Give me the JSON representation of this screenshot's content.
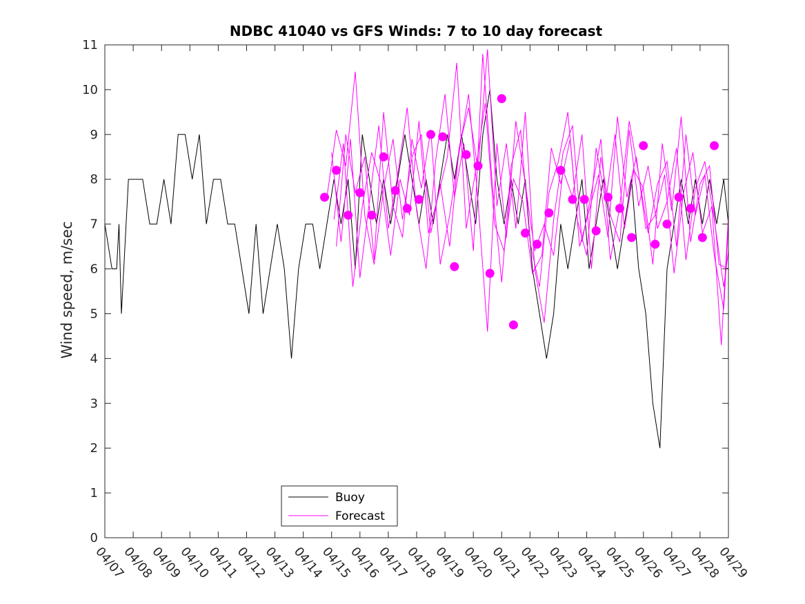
{
  "chart_data": {
    "type": "line",
    "title": "NDBC 41040 vs GFS Winds: 7 to 10 day forecast",
    "xlabel": "",
    "ylabel": "Wind speed, m/sec",
    "xlim": [
      "04/07",
      "04/29"
    ],
    "ylim": [
      0,
      11
    ],
    "x_ticks": [
      "04/07",
      "04/08",
      "04/09",
      "04/10",
      "04/11",
      "04/12",
      "04/13",
      "04/14",
      "04/15",
      "04/16",
      "04/17",
      "04/18",
      "04/19",
      "04/20",
      "04/21",
      "04/22",
      "04/23",
      "04/24",
      "04/25",
      "04/26",
      "04/27",
      "04/28",
      "04/29"
    ],
    "y_ticks": [
      0,
      1,
      2,
      3,
      4,
      5,
      6,
      7,
      8,
      9,
      10,
      11
    ],
    "grid": false,
    "legend_position": "bottom-left",
    "legend": [
      {
        "label": "Buoy",
        "color": "#000000"
      },
      {
        "label": "Forecast",
        "color": "#ff00ff"
      }
    ],
    "series": [
      {
        "name": "Buoy",
        "color": "#000000",
        "style": "line",
        "x": [
          "04/07 00:00",
          "04/07 06:00",
          "04/07 10:00",
          "04/07 12:00",
          "04/07 14:00",
          "04/07 20:00",
          "04/08 02:00",
          "04/08 08:00",
          "04/08 14:00",
          "04/08 20:00",
          "04/09 02:00",
          "04/09 08:00",
          "04/09 14:00",
          "04/09 20:00",
          "04/10 02:00",
          "04/10 08:00",
          "04/10 14:00",
          "04/10 20:00",
          "04/11 02:00",
          "04/11 08:00",
          "04/11 14:00",
          "04/11 20:00",
          "04/12 02:00",
          "04/12 08:00",
          "04/12 14:00",
          "04/12 20:00",
          "04/13 02:00",
          "04/13 08:00",
          "04/13 14:00",
          "04/13 20:00",
          "04/14 02:00",
          "04/14 08:00",
          "04/14 14:00",
          "04/14 20:00",
          "04/15 02:00",
          "04/15 08:00",
          "04/15 14:00",
          "04/15 20:00",
          "04/16 02:00",
          "04/16 08:00",
          "04/16 14:00",
          "04/16 20:00",
          "04/17 02:00",
          "04/17 08:00",
          "04/17 14:00",
          "04/17 20:00",
          "04/18 02:00",
          "04/18 08:00",
          "04/18 14:00",
          "04/18 20:00",
          "04/19 02:00",
          "04/19 08:00",
          "04/19 14:00",
          "04/19 20:00",
          "04/20 02:00",
          "04/20 08:00",
          "04/20 14:00",
          "04/20 20:00",
          "04/21 02:00",
          "04/21 08:00",
          "04/21 14:00",
          "04/21 20:00",
          "04/22 02:00",
          "04/22 08:00",
          "04/22 14:00",
          "04/22 20:00",
          "04/23 02:00",
          "04/23 08:00",
          "04/23 14:00",
          "04/23 20:00",
          "04/24 02:00",
          "04/24 08:00",
          "04/24 14:00",
          "04/24 20:00",
          "04/25 02:00",
          "04/25 08:00",
          "04/25 14:00",
          "04/25 20:00",
          "04/26 02:00",
          "04/26 08:00",
          "04/26 14:00",
          "04/26 20:00",
          "04/27 02:00",
          "04/27 08:00",
          "04/27 14:00",
          "04/27 20:00",
          "04/28 02:00",
          "04/28 08:00",
          "04/28 14:00",
          "04/28 20:00",
          "04/29 00:00"
        ],
        "y": [
          7,
          6,
          6,
          7,
          5,
          8,
          8,
          8,
          7,
          7,
          8,
          7,
          9,
          9,
          8,
          9,
          7,
          8,
          8,
          7,
          7,
          6,
          5,
          7,
          5,
          6,
          7,
          6,
          4,
          6,
          7,
          7,
          6,
          7,
          8,
          7,
          8,
          6,
          9,
          8,
          7,
          8,
          7,
          8,
          9,
          8,
          7,
          8,
          7,
          8,
          9,
          8,
          9,
          8,
          7,
          9,
          10,
          8,
          7,
          8,
          7,
          8,
          6,
          5,
          4,
          5,
          7,
          6,
          7,
          8,
          6,
          7,
          8,
          7,
          6,
          7,
          8,
          6,
          5,
          3,
          2,
          6,
          7,
          8,
          7,
          8,
          7,
          8,
          7,
          8,
          7
        ]
      },
      {
        "name": "Forecast",
        "color": "#ff00ff",
        "style": "lines",
        "lines": [
          {
            "x": [
              "04/14 20:00",
              "04/15 04:00",
              "04/15 12:00",
              "04/15 20:00",
              "04/16 04:00",
              "04/16 12:00",
              "04/16 20:00",
              "04/17 04:00",
              "04/17 12:00",
              "04/17 20:00",
              "04/18 04:00",
              "04/18 12:00",
              "04/18 20:00",
              "04/19 04:00",
              "04/19 12:00",
              "04/19 20:00",
              "04/20 04:00",
              "04/20 12:00",
              "04/20 20:00",
              "04/21 04:00",
              "04/21 12:00",
              "04/21 20:00",
              "04/22 04:00",
              "04/22 12:00",
              "04/22 20:00",
              "04/23 04:00",
              "04/23 12:00",
              "04/23 20:00",
              "04/24 04:00",
              "04/24 12:00",
              "04/24 20:00",
              "04/25 04:00",
              "04/25 12:00",
              "04/25 20:00",
              "04/26 04:00",
              "04/26 12:00",
              "04/26 20:00",
              "04/27 04:00",
              "04/27 12:00",
              "04/27 20:00",
              "04/28 04:00",
              "04/28 12:00",
              "04/28 20:00",
              "04/29 00:00"
            ],
            "y": [
              7.6,
              9.1,
              8.3,
              10.4,
              7.2,
              6.1,
              7.8,
              8.9,
              7.1,
              8.5,
              9.0,
              6.8,
              7.9,
              6.5,
              8.7,
              9.6,
              8.2,
              10.9,
              7.4,
              8.8,
              6.9,
              9.5,
              6.0,
              4.8,
              7.1,
              8.6,
              9.2,
              6.6,
              7.7,
              8.9,
              6.2,
              7.4,
              9.3,
              8.1,
              6.8,
              7.9,
              8.4,
              6.5,
              9.0,
              7.2,
              8.1,
              6.3,
              5.1,
              7.0
            ]
          },
          {
            "x": [
              "04/15 00:00",
              "04/15 08:00",
              "04/15 16:00",
              "04/16 00:00",
              "04/16 08:00",
              "04/16 16:00",
              "04/17 00:00",
              "04/17 08:00",
              "04/17 16:00",
              "04/18 00:00",
              "04/18 08:00",
              "04/18 16:00",
              "04/19 00:00",
              "04/19 08:00",
              "04/19 16:00",
              "04/20 00:00",
              "04/20 08:00",
              "04/20 16:00",
              "04/21 00:00",
              "04/21 08:00",
              "04/21 16:00",
              "04/22 00:00",
              "04/22 08:00",
              "04/22 16:00",
              "04/23 00:00",
              "04/23 08:00",
              "04/23 16:00",
              "04/24 00:00",
              "04/24 08:00",
              "04/24 16:00",
              "04/25 00:00",
              "04/25 08:00",
              "04/25 16:00",
              "04/26 00:00",
              "04/26 08:00",
              "04/26 16:00",
              "04/27 00:00",
              "04/27 08:00",
              "04/27 16:00",
              "04/28 00:00",
              "04/28 08:00",
              "04/28 16:00",
              "04/29 00:00"
            ],
            "y": [
              8.6,
              6.6,
              8.9,
              5.8,
              7.5,
              9.2,
              6.9,
              8.1,
              9.6,
              7.3,
              6.0,
              8.4,
              9.9,
              7.6,
              8.8,
              6.4,
              10.8,
              7.9,
              5.7,
              8.3,
              9.1,
              6.6,
              5.6,
              7.7,
              8.4,
              9.5,
              7.1,
              6.3,
              8.7,
              7.5,
              9.0,
              6.9,
              8.2,
              7.8,
              6.1,
              8.8,
              7.3,
              9.4,
              6.6,
              7.9,
              8.3,
              6.1,
              6.0
            ]
          },
          {
            "x": [
              "04/15 02:00",
              "04/15 10:00",
              "04/15 18:00",
              "04/16 02:00",
              "04/16 10:00",
              "04/16 18:00",
              "04/17 02:00",
              "04/17 10:00",
              "04/17 18:00",
              "04/18 02:00",
              "04/18 10:00",
              "04/18 18:00",
              "04/19 02:00",
              "04/19 10:00",
              "04/19 18:00",
              "04/20 02:00",
              "04/20 10:00",
              "04/20 18:00",
              "04/21 02:00",
              "04/21 10:00",
              "04/21 18:00",
              "04/22 02:00",
              "04/22 10:00",
              "04/22 18:00",
              "04/23 02:00",
              "04/23 10:00",
              "04/23 18:00",
              "04/24 02:00",
              "04/24 10:00",
              "04/24 18:00",
              "04/25 02:00",
              "04/25 10:00",
              "04/25 18:00",
              "04/26 02:00",
              "04/26 10:00",
              "04/26 18:00",
              "04/27 02:00",
              "04/27 10:00",
              "04/27 18:00",
              "04/28 02:00",
              "04/28 10:00",
              "04/28 18:00",
              "04/29 00:00"
            ],
            "y": [
              7.1,
              8.8,
              5.6,
              7.4,
              8.6,
              7.9,
              6.3,
              8.0,
              7.2,
              9.3,
              6.8,
              7.6,
              8.5,
              10.6,
              6.9,
              8.2,
              9.7,
              7.0,
              6.4,
              8.0,
              7.5,
              5.9,
              6.3,
              8.7,
              7.9,
              8.9,
              6.5,
              7.3,
              8.1,
              6.7,
              9.4,
              7.6,
              8.5,
              6.9,
              7.2,
              8.1,
              5.9,
              7.7,
              8.6,
              6.8,
              7.4,
              4.3,
              7.2
            ]
          },
          {
            "x": [
              "04/15 04:00",
              "04/15 12:00",
              "04/15 20:00",
              "04/16 04:00",
              "04/16 12:00",
              "04/16 20:00",
              "04/17 04:00",
              "04/17 12:00",
              "04/17 20:00",
              "04/18 04:00",
              "04/18 12:00",
              "04/18 20:00",
              "04/19 04:00",
              "04/19 12:00",
              "04/19 20:00",
              "04/20 04:00",
              "04/20 12:00",
              "04/20 20:00",
              "04/21 04:00",
              "04/21 12:00",
              "04/21 20:00",
              "04/22 04:00",
              "04/22 12:00",
              "04/22 20:00",
              "04/23 04:00",
              "04/23 12:00",
              "04/23 20:00",
              "04/24 04:00",
              "04/24 12:00",
              "04/24 20:00",
              "04/25 04:00",
              "04/25 12:00",
              "04/25 20:00",
              "04/26 04:00",
              "04/26 12:00",
              "04/26 20:00",
              "04/27 04:00",
              "04/27 12:00",
              "04/27 20:00",
              "04/28 04:00",
              "04/28 12:00",
              "04/28 20:00",
              "04/29 00:00"
            ],
            "y": [
              6.5,
              9.0,
              7.7,
              8.5,
              6.2,
              9.5,
              7.4,
              6.7,
              8.9,
              7.8,
              9.1,
              6.1,
              7.2,
              8.6,
              9.9,
              7.5,
              4.6,
              8.8,
              6.7,
              9.3,
              7.9,
              6.4,
              7.0,
              6.3,
              8.2,
              7.6,
              9.0,
              6.0,
              8.5,
              7.2,
              6.6,
              9.1,
              7.4,
              8.3,
              6.9,
              7.5,
              8.7,
              6.2,
              7.8,
              8.4,
              7.1,
              5.6,
              6.4
            ]
          }
        ]
      },
      {
        "name": "Forecast",
        "color": "#ff00ff",
        "style": "markers",
        "x": [
          "04/14 18:00",
          "04/15 04:00",
          "04/15 14:00",
          "04/16 00:00",
          "04/16 10:00",
          "04/16 20:00",
          "04/17 06:00",
          "04/17 16:00",
          "04/18 02:00",
          "04/18 12:00",
          "04/18 22:00",
          "04/19 08:00",
          "04/19 18:00",
          "04/20 04:00",
          "04/20 14:00",
          "04/21 00:00",
          "04/21 10:00",
          "04/21 20:00",
          "04/22 06:00",
          "04/22 16:00",
          "04/23 02:00",
          "04/23 12:00",
          "04/23 22:00",
          "04/24 08:00",
          "04/24 18:00",
          "04/25 04:00",
          "04/25 14:00",
          "04/26 00:00",
          "04/26 10:00",
          "04/26 20:00",
          "04/27 06:00",
          "04/27 16:00",
          "04/28 02:00",
          "04/28 12:00"
        ],
        "y": [
          7.6,
          8.2,
          7.2,
          7.7,
          7.2,
          8.5,
          7.75,
          7.35,
          7.55,
          9.0,
          8.95,
          6.05,
          8.55,
          8.3,
          5.9,
          9.8,
          4.75,
          6.8,
          6.55,
          7.25,
          8.2,
          7.55,
          7.55,
          6.85,
          7.6,
          7.35,
          6.7,
          8.75,
          6.55,
          7.0,
          7.6,
          7.35,
          6.7,
          8.75
        ]
      }
    ]
  }
}
